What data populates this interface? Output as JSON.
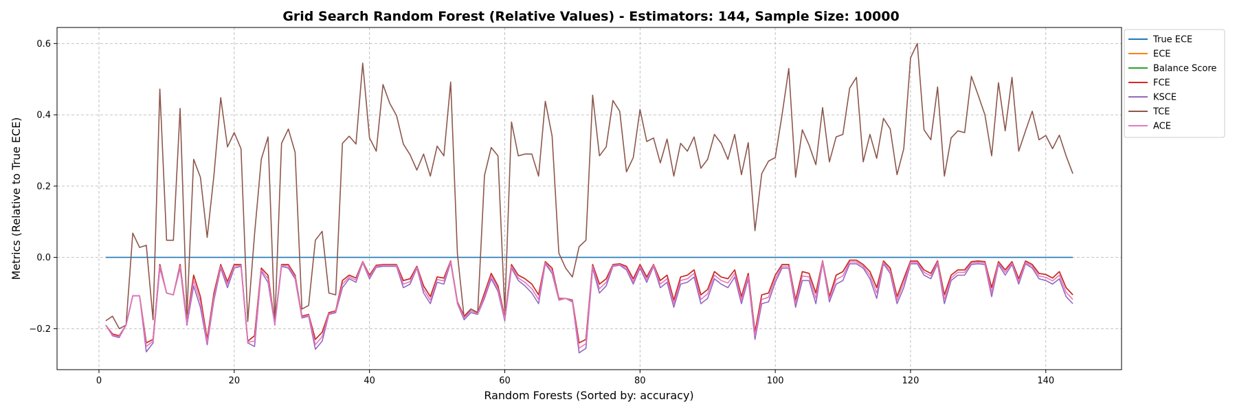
{
  "chart_data": {
    "type": "line",
    "title": "Grid Search Random Forest (Relative Values) - Estimators: 144, Sample Size: 10000",
    "xlabel": "Random Forests (Sorted by: accuracy)",
    "ylabel": "Metrics (Relative to True ECE)",
    "xlim": [
      -6.2,
      151.2
    ],
    "ylim": [
      -0.315,
      0.645
    ],
    "xticks": [
      0,
      20,
      40,
      60,
      80,
      100,
      120,
      140
    ],
    "yticks": [
      -0.2,
      0.0,
      0.2,
      0.4,
      0.6
    ],
    "xtick_labels": [
      "0",
      "20",
      "40",
      "60",
      "80",
      "100",
      "120",
      "140"
    ],
    "ytick_labels": [
      "−0.2",
      "0.0",
      "0.2",
      "0.4",
      "0.6"
    ],
    "grid": true,
    "legend_position": "upper-left-outside-right",
    "x_start": 1,
    "series": [
      {
        "name": "True ECE",
        "color": "#1f77b4",
        "values": [
          0,
          0,
          0,
          0,
          0,
          0,
          0,
          0,
          0,
          0,
          0,
          0,
          0,
          0,
          0,
          0,
          0,
          0,
          0,
          0,
          0,
          0,
          0,
          0,
          0,
          0,
          0,
          0,
          0,
          0,
          0,
          0,
          0,
          0,
          0,
          0,
          0,
          0,
          0,
          0,
          0,
          0,
          0,
          0,
          0,
          0,
          0,
          0,
          0,
          0,
          0,
          0,
          0,
          0,
          0,
          0,
          0,
          0,
          0,
          0,
          0,
          0,
          0,
          0,
          0,
          0,
          0,
          0,
          0,
          0,
          0,
          0,
          0,
          0,
          0,
          0,
          0,
          0,
          0,
          0,
          0,
          0,
          0,
          0,
          0,
          0,
          0,
          0,
          0,
          0,
          0,
          0,
          0,
          0,
          0,
          0,
          0,
          0,
          0,
          0,
          0,
          0,
          0,
          0,
          0,
          0,
          0,
          0,
          0,
          0,
          0,
          0,
          0,
          0,
          0,
          0,
          0,
          0,
          0,
          0,
          0,
          0,
          0,
          0,
          0,
          0,
          0,
          0,
          0,
          0,
          0,
          0,
          0,
          0,
          0,
          0,
          0,
          0,
          0,
          0,
          0,
          0,
          0,
          0
        ]
      },
      {
        "name": "ECE",
        "color": "#ff7f0e",
        "values": [
          -0.19,
          -0.215,
          -0.22,
          -0.19,
          -0.108,
          -0.108,
          -0.24,
          -0.23,
          -0.02,
          -0.1,
          -0.105,
          -0.02,
          -0.18,
          -0.05,
          -0.11,
          -0.23,
          -0.1,
          -0.02,
          -0.068,
          -0.02,
          -0.02,
          -0.235,
          -0.22,
          -0.03,
          -0.05,
          -0.185,
          -0.02,
          -0.02,
          -0.05,
          -0.165,
          -0.16,
          -0.23,
          -0.21,
          -0.155,
          -0.15,
          -0.065,
          -0.05,
          -0.058,
          -0.012,
          -0.05,
          -0.022,
          -0.02,
          -0.02,
          -0.02,
          -0.065,
          -0.06,
          -0.025,
          -0.08,
          -0.11,
          -0.055,
          -0.058,
          -0.01,
          -0.125,
          -0.165,
          -0.145,
          -0.155,
          -0.1,
          -0.045,
          -0.08,
          -0.168,
          -0.02,
          -0.05,
          -0.06,
          -0.075,
          -0.105,
          -0.012,
          -0.03,
          -0.115,
          -0.115,
          -0.12,
          -0.24,
          -0.23,
          -0.02,
          -0.075,
          -0.06,
          -0.02,
          -0.018,
          -0.025,
          -0.06,
          -0.02,
          -0.055,
          -0.02,
          -0.065,
          -0.05,
          -0.12,
          -0.055,
          -0.05,
          -0.035,
          -0.105,
          -0.09,
          -0.04,
          -0.055,
          -0.06,
          -0.035,
          -0.11,
          -0.045,
          -0.21,
          -0.105,
          -0.1,
          -0.05,
          -0.02,
          -0.02,
          -0.12,
          -0.04,
          -0.045,
          -0.1,
          -0.01,
          -0.11,
          -0.05,
          -0.04,
          -0.008,
          -0.008,
          -0.02,
          -0.04,
          -0.085,
          -0.01,
          -0.03,
          -0.11,
          -0.06,
          -0.01,
          -0.01,
          -0.035,
          -0.045,
          -0.01,
          -0.105,
          -0.05,
          -0.035,
          -0.035,
          -0.012,
          -0.01,
          -0.012,
          -0.085,
          -0.012,
          -0.035,
          -0.012,
          -0.06,
          -0.01,
          -0.02,
          -0.045,
          -0.048,
          -0.058,
          -0.04,
          -0.085,
          -0.105
        ]
      },
      {
        "name": "Balance Score",
        "color": "#2ca02c",
        "values": [
          -0.19,
          -0.215,
          -0.22,
          -0.19,
          -0.108,
          -0.108,
          -0.24,
          -0.23,
          -0.02,
          -0.1,
          -0.105,
          -0.02,
          -0.18,
          -0.05,
          -0.11,
          -0.23,
          -0.1,
          -0.02,
          -0.068,
          -0.02,
          -0.02,
          -0.235,
          -0.22,
          -0.03,
          -0.05,
          -0.185,
          -0.02,
          -0.02,
          -0.05,
          -0.165,
          -0.16,
          -0.23,
          -0.21,
          -0.155,
          -0.15,
          -0.065,
          -0.05,
          -0.058,
          -0.012,
          -0.05,
          -0.022,
          -0.02,
          -0.02,
          -0.02,
          -0.065,
          -0.06,
          -0.025,
          -0.08,
          -0.11,
          -0.055,
          -0.058,
          -0.01,
          -0.125,
          -0.165,
          -0.145,
          -0.155,
          -0.1,
          -0.045,
          -0.08,
          -0.168,
          -0.02,
          -0.05,
          -0.06,
          -0.075,
          -0.105,
          -0.012,
          -0.03,
          -0.115,
          -0.115,
          -0.12,
          -0.24,
          -0.23,
          -0.02,
          -0.075,
          -0.06,
          -0.02,
          -0.018,
          -0.025,
          -0.06,
          -0.02,
          -0.055,
          -0.02,
          -0.065,
          -0.05,
          -0.12,
          -0.055,
          -0.05,
          -0.035,
          -0.105,
          -0.09,
          -0.04,
          -0.055,
          -0.06,
          -0.035,
          -0.11,
          -0.045,
          -0.21,
          -0.105,
          -0.1,
          -0.05,
          -0.02,
          -0.02,
          -0.12,
          -0.04,
          -0.045,
          -0.1,
          -0.01,
          -0.11,
          -0.05,
          -0.04,
          -0.008,
          -0.008,
          -0.02,
          -0.04,
          -0.085,
          -0.01,
          -0.03,
          -0.11,
          -0.06,
          -0.01,
          -0.01,
          -0.035,
          -0.045,
          -0.01,
          -0.105,
          -0.05,
          -0.035,
          -0.035,
          -0.012,
          -0.01,
          -0.012,
          -0.085,
          -0.012,
          -0.035,
          -0.012,
          -0.06,
          -0.01,
          -0.02,
          -0.045,
          -0.048,
          -0.058,
          -0.04,
          -0.085,
          -0.105
        ]
      },
      {
        "name": "FCE",
        "color": "#d62728",
        "values": [
          -0.19,
          -0.215,
          -0.22,
          -0.19,
          -0.108,
          -0.108,
          -0.24,
          -0.23,
          -0.02,
          -0.1,
          -0.105,
          -0.02,
          -0.18,
          -0.05,
          -0.11,
          -0.23,
          -0.1,
          -0.02,
          -0.068,
          -0.02,
          -0.02,
          -0.235,
          -0.22,
          -0.03,
          -0.05,
          -0.185,
          -0.02,
          -0.02,
          -0.05,
          -0.165,
          -0.16,
          -0.23,
          -0.21,
          -0.155,
          -0.15,
          -0.065,
          -0.05,
          -0.058,
          -0.012,
          -0.05,
          -0.022,
          -0.02,
          -0.02,
          -0.02,
          -0.065,
          -0.06,
          -0.025,
          -0.08,
          -0.11,
          -0.055,
          -0.058,
          -0.01,
          -0.125,
          -0.165,
          -0.145,
          -0.155,
          -0.1,
          -0.045,
          -0.08,
          -0.168,
          -0.02,
          -0.05,
          -0.06,
          -0.075,
          -0.105,
          -0.012,
          -0.03,
          -0.115,
          -0.115,
          -0.12,
          -0.24,
          -0.23,
          -0.02,
          -0.075,
          -0.06,
          -0.02,
          -0.018,
          -0.025,
          -0.06,
          -0.02,
          -0.055,
          -0.02,
          -0.065,
          -0.05,
          -0.12,
          -0.055,
          -0.05,
          -0.035,
          -0.105,
          -0.09,
          -0.04,
          -0.055,
          -0.06,
          -0.035,
          -0.11,
          -0.045,
          -0.21,
          -0.105,
          -0.1,
          -0.05,
          -0.02,
          -0.02,
          -0.12,
          -0.04,
          -0.045,
          -0.1,
          -0.01,
          -0.11,
          -0.05,
          -0.04,
          -0.008,
          -0.008,
          -0.02,
          -0.04,
          -0.085,
          -0.01,
          -0.03,
          -0.11,
          -0.06,
          -0.01,
          -0.01,
          -0.035,
          -0.045,
          -0.01,
          -0.105,
          -0.05,
          -0.035,
          -0.035,
          -0.012,
          -0.01,
          -0.012,
          -0.085,
          -0.012,
          -0.035,
          -0.012,
          -0.06,
          -0.01,
          -0.02,
          -0.045,
          -0.048,
          -0.058,
          -0.04,
          -0.085,
          -0.105
        ]
      },
      {
        "name": "KSCE",
        "color": "#9467bd",
        "values": [
          -0.19,
          -0.22,
          -0.225,
          -0.19,
          -0.108,
          -0.108,
          -0.265,
          -0.24,
          -0.03,
          -0.1,
          -0.105,
          -0.03,
          -0.19,
          -0.08,
          -0.14,
          -0.245,
          -0.12,
          -0.03,
          -0.085,
          -0.03,
          -0.025,
          -0.24,
          -0.25,
          -0.04,
          -0.07,
          -0.19,
          -0.025,
          -0.03,
          -0.06,
          -0.17,
          -0.165,
          -0.258,
          -0.235,
          -0.16,
          -0.155,
          -0.085,
          -0.06,
          -0.07,
          -0.015,
          -0.06,
          -0.028,
          -0.025,
          -0.025,
          -0.025,
          -0.085,
          -0.075,
          -0.03,
          -0.1,
          -0.13,
          -0.07,
          -0.075,
          -0.015,
          -0.13,
          -0.175,
          -0.155,
          -0.16,
          -0.115,
          -0.06,
          -0.095,
          -0.178,
          -0.03,
          -0.065,
          -0.08,
          -0.1,
          -0.13,
          -0.018,
          -0.045,
          -0.12,
          -0.115,
          -0.125,
          -0.268,
          -0.255,
          -0.03,
          -0.1,
          -0.08,
          -0.025,
          -0.022,
          -0.035,
          -0.075,
          -0.03,
          -0.07,
          -0.025,
          -0.085,
          -0.07,
          -0.14,
          -0.075,
          -0.07,
          -0.055,
          -0.13,
          -0.115,
          -0.06,
          -0.075,
          -0.085,
          -0.055,
          -0.13,
          -0.06,
          -0.23,
          -0.13,
          -0.125,
          -0.07,
          -0.03,
          -0.03,
          -0.14,
          -0.065,
          -0.065,
          -0.13,
          -0.015,
          -0.125,
          -0.075,
          -0.065,
          -0.018,
          -0.018,
          -0.03,
          -0.06,
          -0.115,
          -0.018,
          -0.045,
          -0.13,
          -0.085,
          -0.018,
          -0.018,
          -0.05,
          -0.06,
          -0.018,
          -0.13,
          -0.065,
          -0.05,
          -0.05,
          -0.02,
          -0.018,
          -0.02,
          -0.11,
          -0.02,
          -0.05,
          -0.02,
          -0.075,
          -0.018,
          -0.03,
          -0.06,
          -0.065,
          -0.075,
          -0.06,
          -0.11,
          -0.13
        ]
      },
      {
        "name": "TCE",
        "color": "#8c564b",
        "values": [
          -0.178,
          -0.165,
          -0.2,
          -0.19,
          0.068,
          0.028,
          0.034,
          -0.175,
          0.472,
          0.048,
          0.048,
          0.418,
          -0.16,
          0.275,
          0.225,
          0.056,
          0.23,
          0.448,
          0.31,
          0.35,
          0.305,
          -0.18,
          0.065,
          0.275,
          0.338,
          -0.185,
          0.32,
          0.36,
          0.295,
          -0.145,
          -0.135,
          0.048,
          0.073,
          -0.1,
          -0.105,
          0.32,
          0.34,
          0.318,
          0.545,
          0.335,
          0.298,
          0.485,
          0.432,
          0.398,
          0.318,
          0.288,
          0.245,
          0.29,
          0.228,
          0.312,
          0.285,
          0.492,
          0.01,
          -0.17,
          -0.145,
          -0.155,
          0.23,
          0.308,
          0.285,
          -0.15,
          0.38,
          0.285,
          0.29,
          0.29,
          0.228,
          0.438,
          0.34,
          0.012,
          -0.03,
          -0.055,
          0.03,
          0.048,
          0.455,
          0.285,
          0.31,
          0.44,
          0.41,
          0.24,
          0.28,
          0.415,
          0.325,
          0.335,
          0.265,
          0.332,
          0.228,
          0.32,
          0.298,
          0.338,
          0.25,
          0.275,
          0.345,
          0.32,
          0.275,
          0.345,
          0.232,
          0.322,
          0.075,
          0.235,
          0.27,
          0.28,
          0.4,
          0.53,
          0.225,
          0.358,
          0.315,
          0.26,
          0.42,
          0.268,
          0.338,
          0.345,
          0.475,
          0.505,
          0.268,
          0.345,
          0.278,
          0.39,
          0.36,
          0.232,
          0.305,
          0.56,
          0.6,
          0.358,
          0.33,
          0.478,
          0.228,
          0.335,
          0.355,
          0.35,
          0.508,
          0.455,
          0.4,
          0.285,
          0.49,
          0.355,
          0.505,
          0.298,
          0.355,
          0.41,
          0.33,
          0.342,
          0.305,
          0.343,
          0.285,
          0.235
        ]
      },
      {
        "name": "ACE",
        "color": "#e377c2",
        "values": [
          -0.19,
          -0.218,
          -0.222,
          -0.19,
          -0.108,
          -0.108,
          -0.25,
          -0.235,
          -0.025,
          -0.1,
          -0.105,
          -0.025,
          -0.185,
          -0.065,
          -0.125,
          -0.238,
          -0.11,
          -0.025,
          -0.075,
          -0.025,
          -0.022,
          -0.238,
          -0.235,
          -0.035,
          -0.06,
          -0.188,
          -0.022,
          -0.025,
          -0.055,
          -0.168,
          -0.162,
          -0.245,
          -0.222,
          -0.158,
          -0.152,
          -0.075,
          -0.055,
          -0.064,
          -0.013,
          -0.055,
          -0.025,
          -0.022,
          -0.022,
          -0.022,
          -0.075,
          -0.068,
          -0.028,
          -0.09,
          -0.12,
          -0.062,
          -0.066,
          -0.012,
          -0.128,
          -0.17,
          -0.15,
          -0.158,
          -0.108,
          -0.052,
          -0.088,
          -0.173,
          -0.025,
          -0.058,
          -0.07,
          -0.088,
          -0.118,
          -0.015,
          -0.038,
          -0.118,
          -0.115,
          -0.122,
          -0.255,
          -0.242,
          -0.025,
          -0.088,
          -0.07,
          -0.022,
          -0.02,
          -0.03,
          -0.068,
          -0.025,
          -0.062,
          -0.022,
          -0.075,
          -0.06,
          -0.13,
          -0.065,
          -0.06,
          -0.045,
          -0.118,
          -0.102,
          -0.05,
          -0.065,
          -0.072,
          -0.045,
          -0.12,
          -0.052,
          -0.22,
          -0.118,
          -0.112,
          -0.06,
          -0.025,
          -0.025,
          -0.13,
          -0.052,
          -0.055,
          -0.115,
          -0.012,
          -0.118,
          -0.062,
          -0.052,
          -0.013,
          -0.013,
          -0.025,
          -0.05,
          -0.1,
          -0.014,
          -0.038,
          -0.12,
          -0.072,
          -0.014,
          -0.014,
          -0.042,
          -0.052,
          -0.014,
          -0.118,
          -0.058,
          -0.042,
          -0.042,
          -0.016,
          -0.014,
          -0.016,
          -0.098,
          -0.016,
          -0.042,
          -0.016,
          -0.068,
          -0.014,
          -0.025,
          -0.052,
          -0.056,
          -0.066,
          -0.05,
          -0.098,
          -0.118
        ]
      }
    ]
  }
}
